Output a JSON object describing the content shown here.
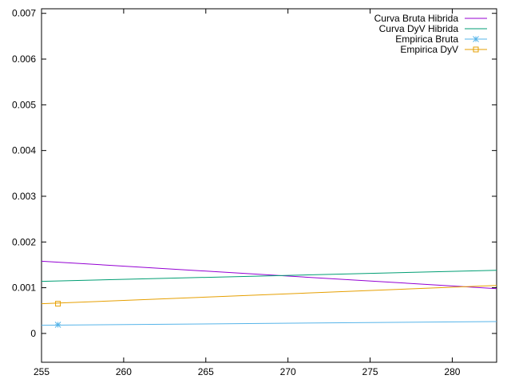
{
  "chart_data": {
    "type": "line",
    "title": "",
    "xlabel": "",
    "ylabel": "",
    "xlim": [
      255,
      282.7
    ],
    "ylim": [
      -0.00063,
      0.0071
    ],
    "x_ticks": [
      255,
      260,
      265,
      270,
      275,
      280
    ],
    "x_tick_labels": [
      "255",
      "260",
      "265",
      "270",
      "275",
      "280"
    ],
    "y_ticks": [
      0,
      0.001,
      0.002,
      0.003,
      0.004,
      0.005,
      0.006,
      0.007
    ],
    "y_tick_labels": [
      "0",
      "0.001",
      "0.002",
      "0.003",
      "0.004",
      "0.005",
      "0.006",
      "0.007"
    ],
    "grid": false,
    "legend_position": "top-right",
    "series": [
      {
        "name": "Curva Bruta Hibrida",
        "color": "#9400d3",
        "marker": "none",
        "x": [
          255,
          282.7
        ],
        "y": [
          0.00158,
          0.00098
        ]
      },
      {
        "name": "Curva DyV Hibrida",
        "color": "#009e73",
        "marker": "none",
        "x": [
          255,
          282.7
        ],
        "y": [
          0.00114,
          0.00138
        ]
      },
      {
        "name": "Empirica Bruta",
        "color": "#56b4e9",
        "marker": "star",
        "x": [
          255,
          282.7
        ],
        "y": [
          0.00018,
          0.00026
        ]
      },
      {
        "name": "Empirica DyV",
        "color": "#e69f00",
        "marker": "square",
        "x": [
          255,
          282.7
        ],
        "y": [
          0.00065,
          0.00105
        ]
      }
    ],
    "markers": [
      {
        "series": 2,
        "x": 256,
        "y": 0.00019
      },
      {
        "series": 3,
        "x": 256,
        "y": 0.00065
      }
    ]
  }
}
